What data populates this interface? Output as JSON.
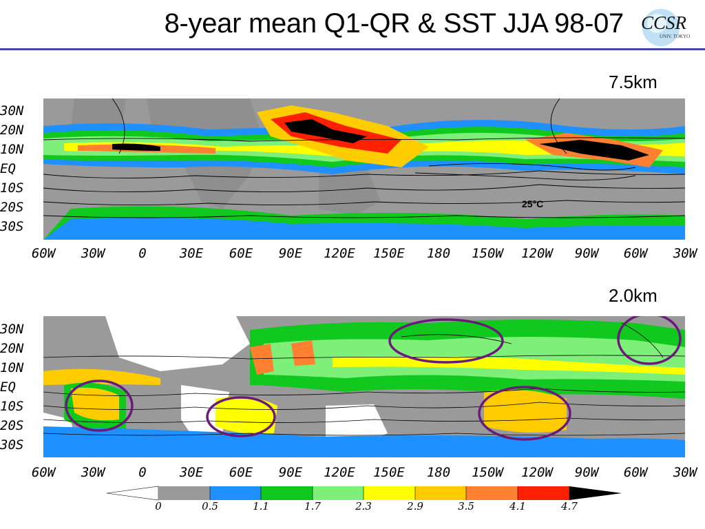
{
  "title": "8-year mean Q1-QR & SST  JJA 98-07",
  "logo": {
    "main": "CCSR",
    "sub": "UNIV. TOKYO"
  },
  "panels": [
    {
      "label": "7.5km",
      "annotation": "25°C"
    },
    {
      "label": "2.0km",
      "annotation": ""
    }
  ],
  "lat_labels": [
    "30N",
    "20N",
    "10N",
    "EQ",
    "10S",
    "20S",
    "30S"
  ],
  "lon_labels": [
    "60W",
    "30W",
    "0",
    "30E",
    "60E",
    "90E",
    "120E",
    "150E",
    "180",
    "150W",
    "120W",
    "90W",
    "60W",
    "30W"
  ],
  "colorbar": {
    "ticks": [
      "0",
      "0.5",
      "1.1",
      "1.7",
      "2.3",
      "2.9",
      "3.5",
      "4.1",
      "4.7"
    ],
    "colors": [
      "#ffffff",
      "#9a9a9a",
      "#1e90ff",
      "#10c81e",
      "#7ef07a",
      "#ffff00",
      "#ffcc00",
      "#ff8030",
      "#ff2000",
      "#000000"
    ]
  }
}
